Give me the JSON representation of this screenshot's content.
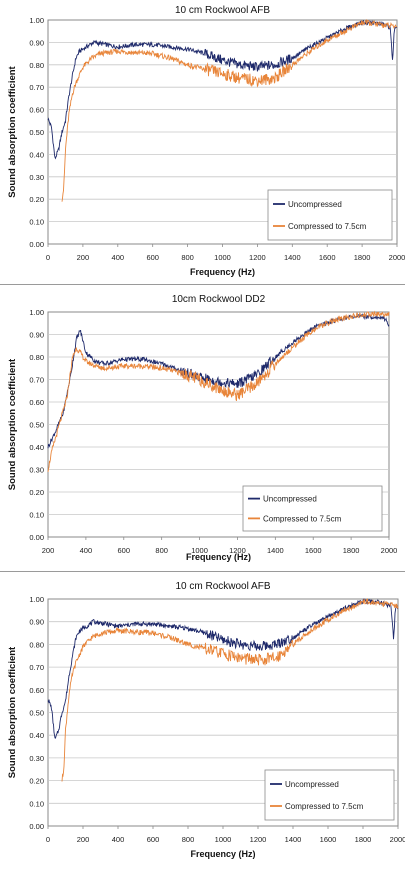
{
  "chart_data": [
    {
      "type": "line",
      "title": "10 cm Rockwool AFB",
      "xlabel": "Frequency (Hz)",
      "ylabel": "Sound absorption coefficient",
      "xlim": [
        0,
        2000
      ],
      "ylim": [
        0,
        1
      ],
      "xticks": [
        "0",
        "200",
        "400",
        "600",
        "800",
        "1000",
        "1200",
        "1400",
        "1600",
        "1800",
        "2000"
      ],
      "yticks": [
        "0.00",
        "0.10",
        "0.20",
        "0.30",
        "0.40",
        "0.50",
        "0.60",
        "0.70",
        "0.80",
        "0.90",
        "1.00"
      ],
      "legend_position": "bottom-right",
      "grid": true,
      "series": [
        {
          "name": "Uncompressed",
          "color": "#1f2a6b",
          "x": [
            0,
            20,
            40,
            60,
            80,
            100,
            120,
            140,
            160,
            180,
            200,
            220,
            260,
            300,
            400,
            500,
            600,
            700,
            800,
            900,
            1000,
            1100,
            1200,
            1300,
            1400,
            1500,
            1600,
            1700,
            1800,
            1900,
            1960,
            1975,
            1985,
            2000
          ],
          "y": [
            0.56,
            0.52,
            0.38,
            0.42,
            0.5,
            0.55,
            0.66,
            0.75,
            0.83,
            0.86,
            0.87,
            0.88,
            0.9,
            0.895,
            0.88,
            0.89,
            0.89,
            0.88,
            0.87,
            0.85,
            0.82,
            0.8,
            0.79,
            0.8,
            0.83,
            0.88,
            0.92,
            0.96,
            0.99,
            0.985,
            0.97,
            0.82,
            0.96,
            0.96
          ]
        },
        {
          "name": "Compressed to 7.5cm",
          "color": "#e8853a",
          "x": [
            80,
            90,
            100,
            120,
            140,
            160,
            200,
            250,
            300,
            400,
            500,
            600,
            700,
            800,
            900,
            1000,
            1100,
            1200,
            1300,
            1400,
            1500,
            1600,
            1700,
            1800,
            1900,
            2000
          ],
          "y": [
            0.2,
            0.25,
            0.42,
            0.58,
            0.67,
            0.72,
            0.79,
            0.83,
            0.85,
            0.86,
            0.855,
            0.85,
            0.83,
            0.8,
            0.78,
            0.76,
            0.74,
            0.73,
            0.74,
            0.8,
            0.86,
            0.91,
            0.95,
            0.99,
            0.98,
            0.97
          ]
        }
      ]
    },
    {
      "type": "line",
      "title": "10cm Rockwool DD2",
      "xlabel": "Frequency (Hz)",
      "ylabel": "Sound  absorption coefficient",
      "xlim": [
        200,
        2000
      ],
      "ylim": [
        0,
        1
      ],
      "xticks": [
        "200",
        "400",
        "600",
        "800",
        "1000",
        "1200",
        "1400",
        "1600",
        "1800",
        "2000"
      ],
      "yticks": [
        "0.00",
        "0.10",
        "0.20",
        "0.30",
        "0.40",
        "0.50",
        "0.60",
        "0.70",
        "0.80",
        "0.90",
        "1.00"
      ],
      "legend_position": "bottom-right",
      "grid": true,
      "series": [
        {
          "name": "Uncompressed",
          "color": "#1f2a6b",
          "x": [
            200,
            240,
            280,
            320,
            350,
            370,
            400,
            450,
            500,
            600,
            700,
            800,
            900,
            1000,
            1100,
            1200,
            1300,
            1400,
            1500,
            1600,
            1700,
            1800,
            1900,
            1980,
            2000
          ],
          "y": [
            0.4,
            0.47,
            0.55,
            0.72,
            0.88,
            0.92,
            0.82,
            0.78,
            0.77,
            0.79,
            0.79,
            0.77,
            0.74,
            0.71,
            0.69,
            0.68,
            0.72,
            0.8,
            0.87,
            0.93,
            0.96,
            0.98,
            0.98,
            0.97,
            0.94
          ]
        },
        {
          "name": "Compressed to 7.5cm",
          "color": "#e8853a",
          "x": [
            200,
            220,
            260,
            300,
            330,
            350,
            370,
            400,
            450,
            500,
            600,
            700,
            800,
            900,
            1000,
            1100,
            1200,
            1300,
            1400,
            1500,
            1600,
            1700,
            1800,
            1900,
            2000
          ],
          "y": [
            0.3,
            0.38,
            0.5,
            0.62,
            0.8,
            0.84,
            0.82,
            0.78,
            0.76,
            0.75,
            0.76,
            0.76,
            0.75,
            0.73,
            0.7,
            0.66,
            0.63,
            0.68,
            0.77,
            0.85,
            0.92,
            0.96,
            0.98,
            0.99,
            0.99
          ]
        }
      ]
    },
    {
      "type": "line",
      "title": "10 cm Rockwool AFB",
      "xlabel": "Frequency (Hz)",
      "ylabel": "Sound absorption coefficient",
      "xlim": [
        0,
        2000
      ],
      "ylim": [
        0,
        1
      ],
      "xticks": [
        "0",
        "200",
        "400",
        "600",
        "800",
        "1000",
        "1200",
        "1400",
        "1600",
        "1800",
        "2000"
      ],
      "yticks": [
        "0.00",
        "0.10",
        "0.20",
        "0.30",
        "0.40",
        "0.50",
        "0.60",
        "0.70",
        "0.80",
        "0.90",
        "1.00"
      ],
      "legend_position": "bottom-right",
      "grid": true,
      "series": [
        {
          "name": "Uncompressed",
          "color": "#1f2a6b",
          "x": [
            0,
            20,
            40,
            60,
            80,
            100,
            120,
            140,
            160,
            180,
            200,
            220,
            260,
            300,
            400,
            500,
            600,
            700,
            800,
            900,
            1000,
            1100,
            1200,
            1300,
            1400,
            1500,
            1600,
            1700,
            1800,
            1900,
            1960,
            1975,
            1985,
            2000
          ],
          "y": [
            0.56,
            0.52,
            0.38,
            0.42,
            0.5,
            0.55,
            0.66,
            0.75,
            0.83,
            0.86,
            0.87,
            0.88,
            0.9,
            0.895,
            0.88,
            0.89,
            0.89,
            0.88,
            0.87,
            0.85,
            0.82,
            0.8,
            0.79,
            0.8,
            0.83,
            0.88,
            0.92,
            0.96,
            0.99,
            0.985,
            0.97,
            0.82,
            0.96,
            0.96
          ]
        },
        {
          "name": "Compressed to 7.5cm",
          "color": "#e8853a",
          "x": [
            80,
            90,
            100,
            120,
            140,
            160,
            200,
            250,
            300,
            400,
            500,
            600,
            700,
            800,
            900,
            1000,
            1100,
            1200,
            1300,
            1400,
            1500,
            1600,
            1700,
            1800,
            1900,
            2000
          ],
          "y": [
            0.2,
            0.25,
            0.42,
            0.58,
            0.67,
            0.72,
            0.79,
            0.83,
            0.85,
            0.86,
            0.855,
            0.85,
            0.83,
            0.8,
            0.78,
            0.76,
            0.74,
            0.73,
            0.74,
            0.8,
            0.86,
            0.91,
            0.95,
            0.99,
            0.98,
            0.97
          ]
        }
      ]
    }
  ]
}
